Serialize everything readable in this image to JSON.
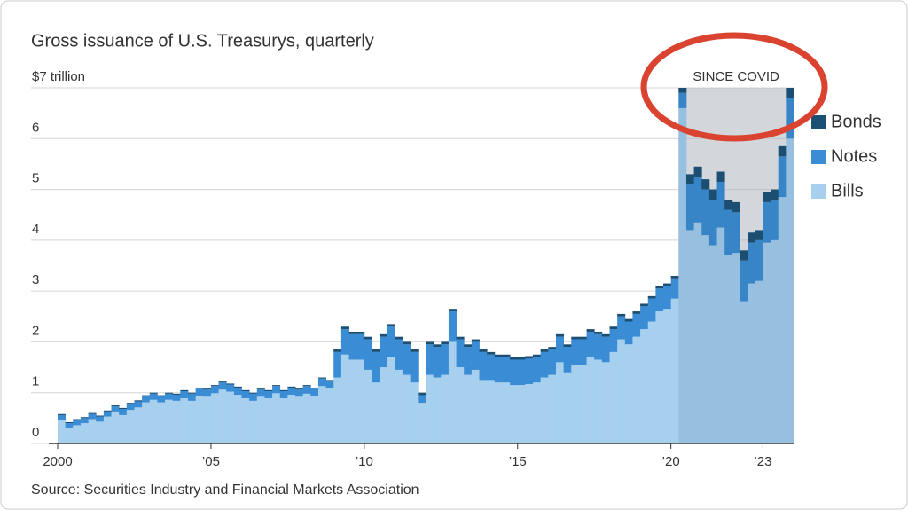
{
  "chart_data": {
    "type": "stacked-step-area",
    "title": "Gross issuance of U.S. Treasurys, quarterly",
    "source": "Source: Securities Industry and Financial Markets Association",
    "annotation": {
      "text": "SINCE COVID",
      "start": 2020.25,
      "end": 2024
    },
    "x": [
      2000,
      2000.25,
      2000.5,
      2000.75,
      2001,
      2001.25,
      2001.5,
      2001.75,
      2002,
      2002.25,
      2002.5,
      2002.75,
      2003,
      2003.25,
      2003.5,
      2003.75,
      2004,
      2004.25,
      2004.5,
      2004.75,
      2005,
      2005.25,
      2005.5,
      2005.75,
      2006,
      2006.25,
      2006.5,
      2006.75,
      2007,
      2007.25,
      2007.5,
      2007.75,
      2008,
      2008.25,
      2008.5,
      2008.75,
      2009,
      2009.25,
      2009.5,
      2009.75,
      2010,
      2010.25,
      2010.5,
      2010.75,
      2011,
      2011.25,
      2011.5,
      2011.75,
      2012,
      2012.25,
      2012.5,
      2012.75,
      2013,
      2013.25,
      2013.5,
      2013.75,
      2014,
      2014.25,
      2014.5,
      2014.75,
      2015,
      2015.25,
      2015.5,
      2015.75,
      2016,
      2016.25,
      2016.5,
      2016.75,
      2017,
      2017.25,
      2017.5,
      2017.75,
      2018,
      2018.25,
      2018.5,
      2018.75,
      2019,
      2019.25,
      2019.5,
      2019.75,
      2020,
      2020.25,
      2020.5,
      2020.75,
      2021,
      2021.25,
      2021.5,
      2021.75,
      2022,
      2022.25,
      2022.5,
      2022.75,
      2023,
      2023.25,
      2023.5,
      2023.75
    ],
    "series": [
      {
        "name": "Bonds",
        "color": "#1b4f74",
        "values": [
          0.02,
          0.02,
          0.02,
          0.02,
          0.02,
          0.02,
          0.02,
          0.02,
          0.02,
          0.02,
          0.02,
          0.02,
          0.02,
          0.02,
          0.02,
          0.02,
          0.02,
          0.02,
          0.02,
          0.02,
          0.02,
          0.02,
          0.02,
          0.02,
          0.02,
          0.02,
          0.02,
          0.02,
          0.02,
          0.02,
          0.02,
          0.02,
          0.02,
          0.02,
          0.02,
          0.02,
          0.05,
          0.05,
          0.05,
          0.05,
          0.05,
          0.05,
          0.05,
          0.05,
          0.05,
          0.05,
          0.05,
          0.05,
          0.05,
          0.05,
          0.05,
          0.05,
          0.05,
          0.05,
          0.05,
          0.05,
          0.05,
          0.05,
          0.05,
          0.05,
          0.05,
          0.05,
          0.05,
          0.05,
          0.05,
          0.05,
          0.05,
          0.05,
          0.05,
          0.05,
          0.05,
          0.05,
          0.05,
          0.05,
          0.05,
          0.05,
          0.05,
          0.05,
          0.05,
          0.05,
          0.05,
          0.1,
          0.2,
          0.2,
          0.2,
          0.2,
          0.2,
          0.2,
          0.2,
          0.2,
          0.2,
          0.2,
          0.2,
          0.2,
          0.2,
          0.2
        ]
      },
      {
        "name": "Notes",
        "color": "#3a8cd4",
        "values": [
          0.1,
          0.1,
          0.1,
          0.1,
          0.1,
          0.1,
          0.1,
          0.1,
          0.12,
          0.12,
          0.12,
          0.12,
          0.12,
          0.12,
          0.12,
          0.12,
          0.14,
          0.14,
          0.14,
          0.14,
          0.14,
          0.14,
          0.14,
          0.14,
          0.14,
          0.14,
          0.14,
          0.14,
          0.14,
          0.14,
          0.14,
          0.14,
          0.15,
          0.15,
          0.15,
          0.15,
          0.5,
          0.5,
          0.5,
          0.5,
          0.6,
          0.6,
          0.6,
          0.6,
          0.6,
          0.6,
          0.6,
          0.15,
          0.6,
          0.6,
          0.6,
          0.6,
          0.55,
          0.55,
          0.55,
          0.55,
          0.5,
          0.5,
          0.5,
          0.5,
          0.5,
          0.5,
          0.5,
          0.5,
          0.5,
          0.5,
          0.5,
          0.5,
          0.5,
          0.5,
          0.5,
          0.5,
          0.45,
          0.45,
          0.45,
          0.45,
          0.45,
          0.45,
          0.45,
          0.45,
          0.4,
          0.3,
          0.9,
          0.9,
          0.9,
          0.9,
          0.9,
          0.9,
          0.8,
          0.8,
          0.8,
          0.8,
          0.8,
          0.8,
          0.8,
          0.8
        ]
      },
      {
        "name": "Bills",
        "color": "#a7d0ef",
        "values": [
          0.46,
          0.3,
          0.36,
          0.4,
          0.48,
          0.43,
          0.53,
          0.63,
          0.56,
          0.66,
          0.71,
          0.81,
          0.86,
          0.81,
          0.86,
          0.84,
          0.89,
          0.84,
          0.94,
          0.92,
          0.99,
          1.06,
          1.02,
          0.96,
          0.89,
          0.84,
          0.92,
          0.89,
          0.99,
          0.89,
          0.96,
          0.92,
          0.98,
          0.93,
          1.13,
          1.08,
          1.3,
          1.75,
          1.65,
          1.65,
          1.45,
          1.2,
          1.5,
          1.7,
          1.45,
          1.35,
          1.2,
          0.8,
          1.35,
          1.3,
          1.35,
          2.0,
          1.5,
          1.35,
          1.45,
          1.25,
          1.25,
          1.2,
          1.2,
          1.15,
          1.15,
          1.17,
          1.2,
          1.3,
          1.35,
          1.6,
          1.4,
          1.55,
          1.55,
          1.7,
          1.65,
          1.6,
          1.8,
          2.05,
          1.95,
          2.1,
          2.25,
          2.4,
          2.6,
          2.65,
          2.85,
          6.6,
          4.2,
          4.35,
          4.1,
          3.9,
          4.25,
          3.7,
          3.75,
          2.8,
          3.15,
          3.2,
          3.95,
          4.0,
          4.85,
          6.0
        ]
      }
    ],
    "xlim": [
      2000,
      2024
    ],
    "xticks": [
      2000,
      {
        "value": 2005,
        "label": "’05"
      },
      {
        "value": 2010,
        "label": "’10"
      },
      {
        "value": 2015,
        "label": "’15"
      },
      {
        "value": 2020,
        "label": "’20"
      },
      {
        "value": 2023,
        "label": "’23"
      }
    ],
    "ylim": [
      0,
      7
    ],
    "yticks": [
      0,
      1,
      2,
      3,
      4,
      5,
      6,
      {
        "value": 7,
        "label": "$7 trillion"
      }
    ],
    "grid": true
  }
}
